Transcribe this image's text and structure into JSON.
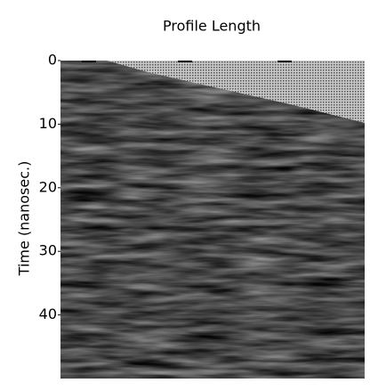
{
  "chart_data": {
    "type": "image",
    "title": "Profile Length",
    "y_label": "Time (nanosec.)",
    "ylim": [
      0,
      50
    ],
    "yticks": [
      0,
      10,
      20,
      30,
      40
    ]
  }
}
